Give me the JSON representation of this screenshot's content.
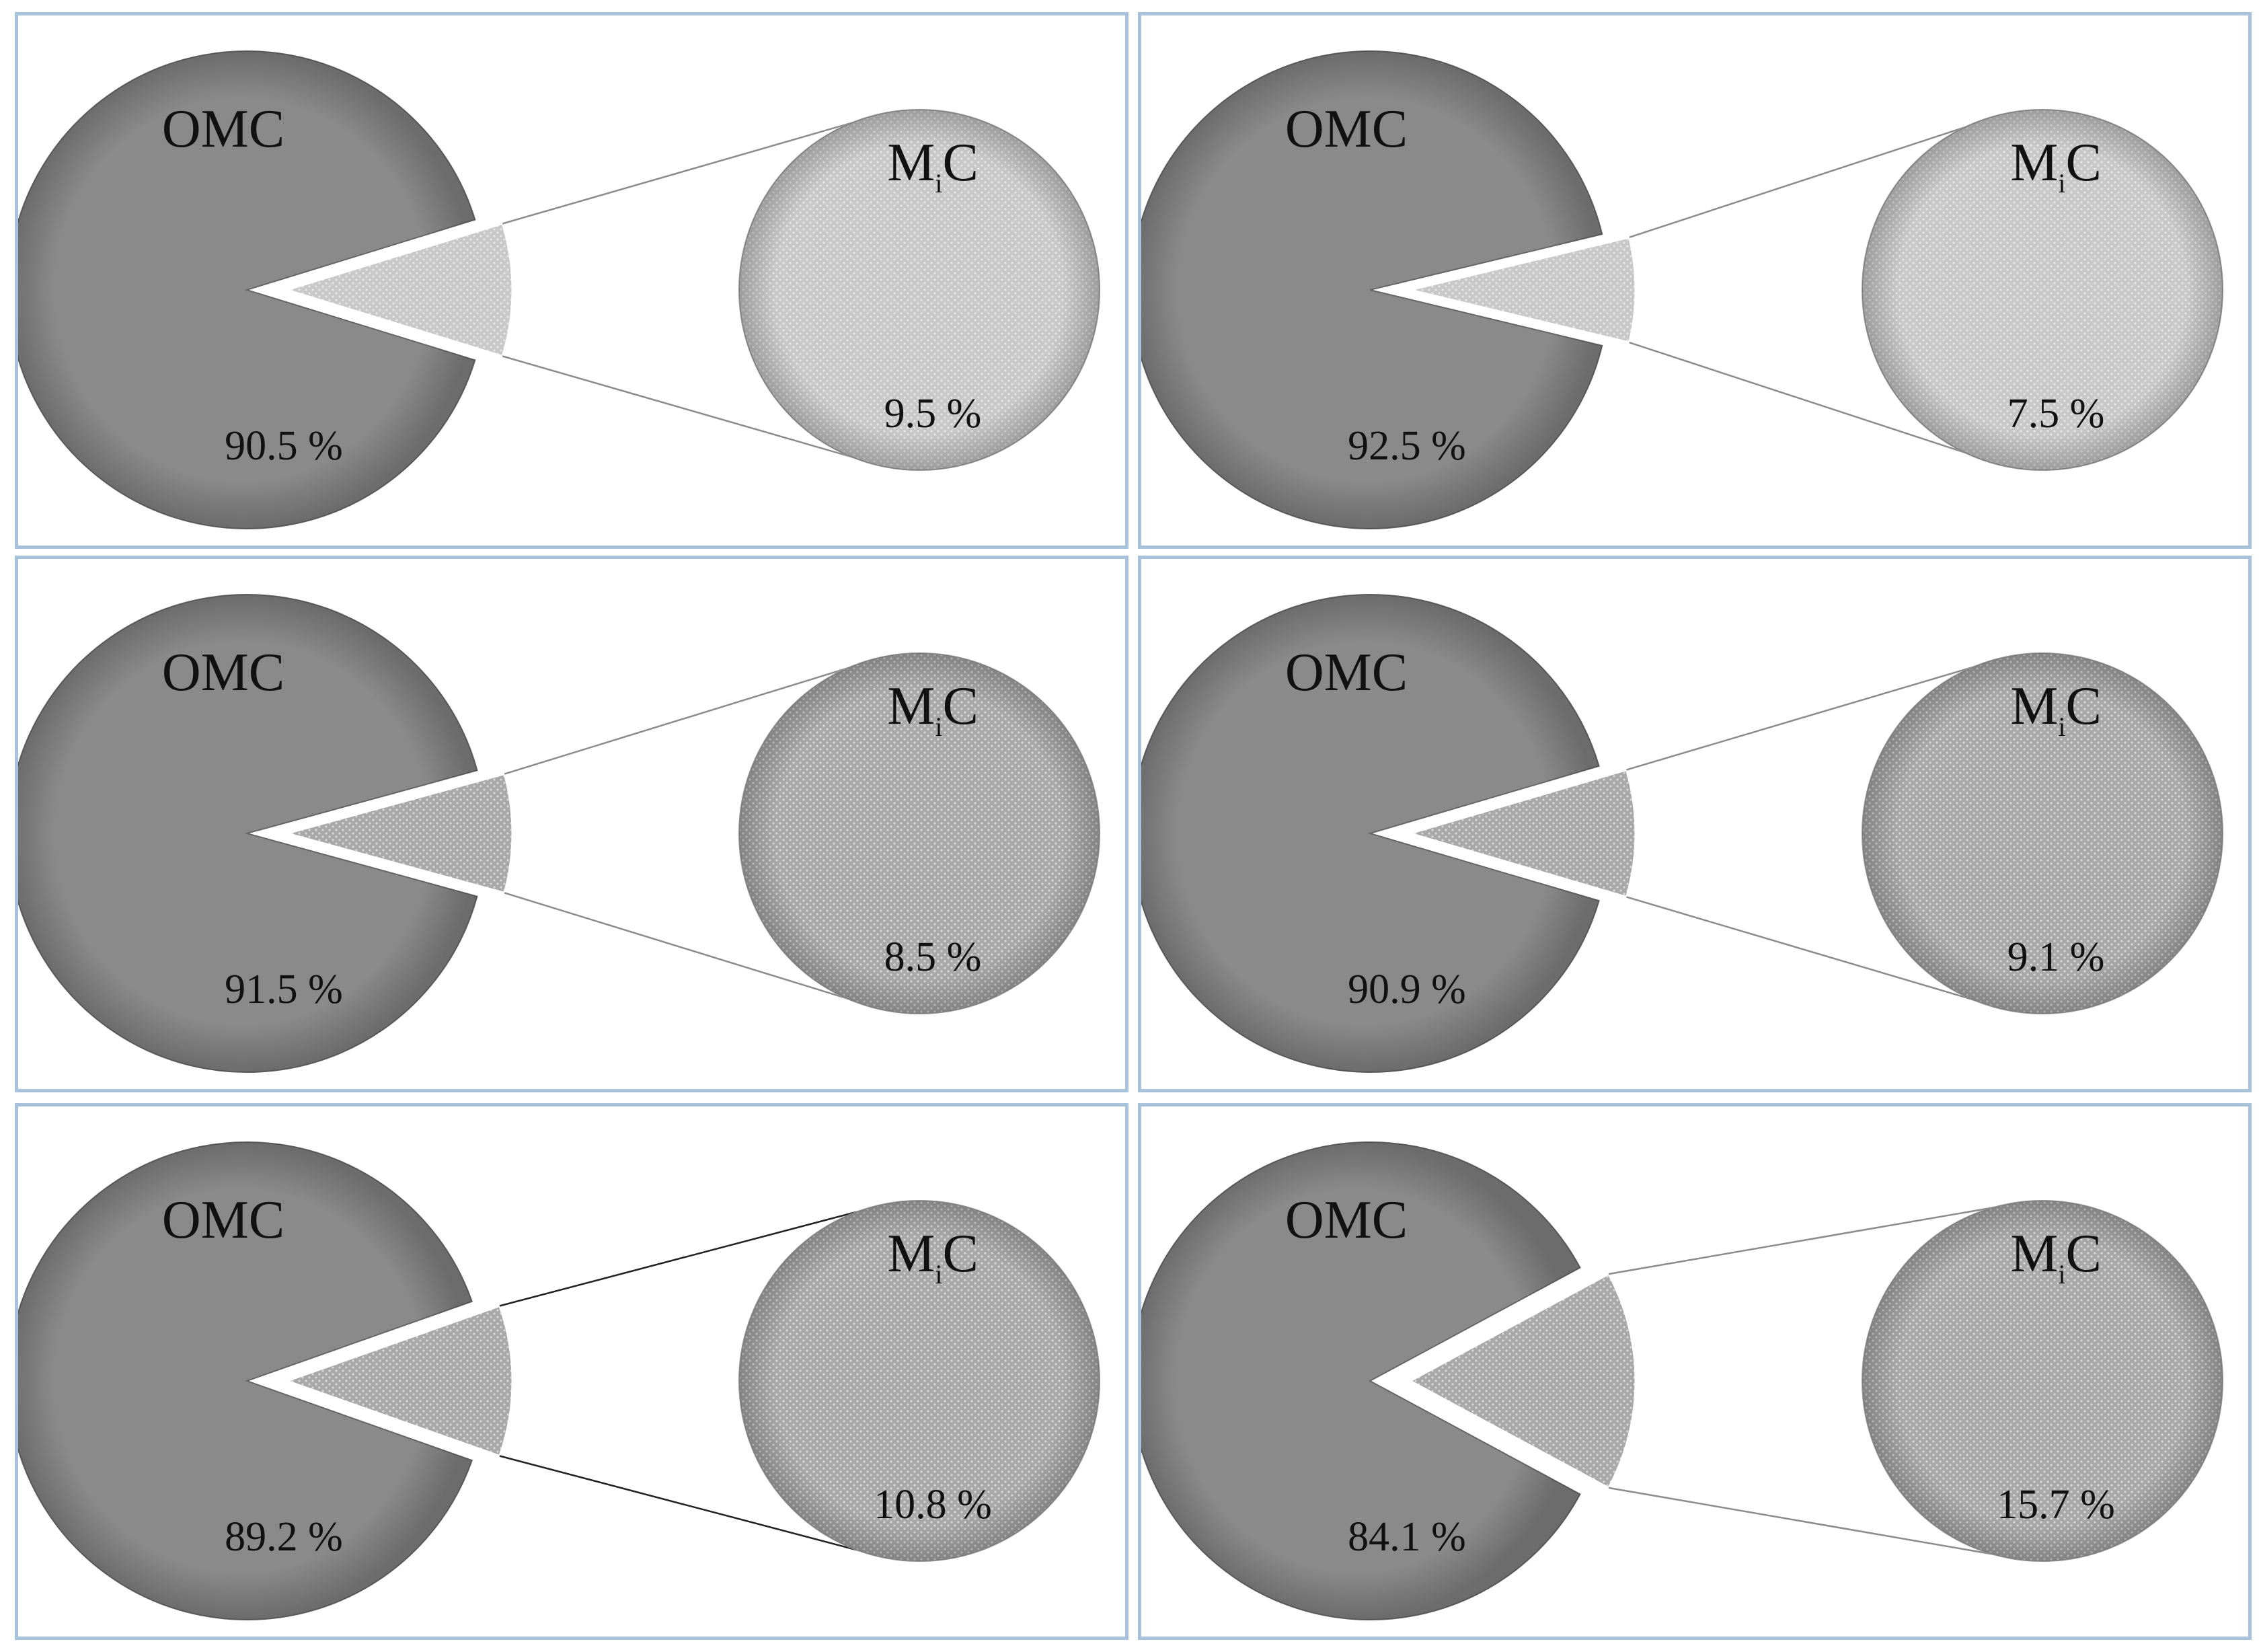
{
  "colors": {
    "omc": "#8a8a8a",
    "mic": "#c8c8c8",
    "mic_dark": "#a8a8a8",
    "panel_border": "#a9c2dc"
  },
  "chart_data": [
    {
      "type": "pie",
      "categories": [
        "OMC",
        "MiC"
      ],
      "values": [
        90.5,
        9.5
      ],
      "labels": {
        "omc": "OMC",
        "mic_base": "M",
        "mic_sub": "i",
        "mic_tail": "C",
        "omc_value": "90.5 %",
        "mic_value": "9.5 %"
      }
    },
    {
      "type": "pie",
      "categories": [
        "OMC",
        "MiC"
      ],
      "values": [
        92.5,
        7.5
      ],
      "labels": {
        "omc": "OMC",
        "mic_base": "M",
        "mic_sub": "i",
        "mic_tail": "C",
        "omc_value": "92.5 %",
        "mic_value": "7.5 %"
      }
    },
    {
      "type": "pie",
      "categories": [
        "OMC",
        "MiC"
      ],
      "values": [
        91.5,
        8.5
      ],
      "labels": {
        "omc": "OMC",
        "mic_base": "M",
        "mic_sub": "i",
        "mic_tail": "C",
        "omc_value": "91.5 %",
        "mic_value": "8.5 %"
      }
    },
    {
      "type": "pie",
      "categories": [
        "OMC",
        "MiC"
      ],
      "values": [
        90.9,
        9.1
      ],
      "labels": {
        "omc": "OMC",
        "mic_base": "M",
        "mic_sub": "i",
        "mic_tail": "C",
        "omc_value": "90.9 %",
        "mic_value": "9.1 %"
      }
    },
    {
      "type": "pie",
      "categories": [
        "OMC",
        "MiC"
      ],
      "values": [
        89.2,
        10.8
      ],
      "labels": {
        "omc": "OMC",
        "mic_base": "M",
        "mic_sub": "i",
        "mic_tail": "C",
        "omc_value": "89.2 %",
        "mic_value": "10.8 %"
      }
    },
    {
      "type": "pie",
      "categories": [
        "OMC",
        "MiC"
      ],
      "values": [
        84.1,
        15.7
      ],
      "labels": {
        "omc": "OMC",
        "mic_base": "M",
        "mic_sub": "i",
        "mic_tail": "C",
        "omc_value": "84.1 %",
        "mic_value": "15.7 %"
      }
    }
  ]
}
